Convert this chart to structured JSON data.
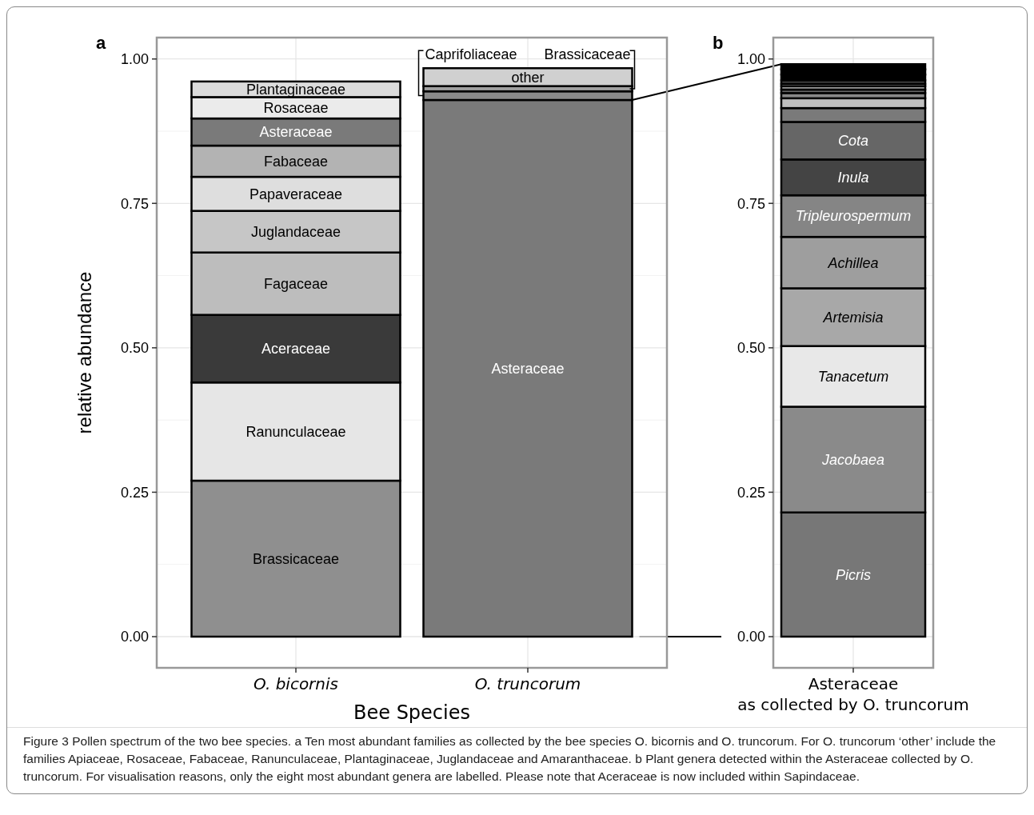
{
  "chart_data": [
    {
      "type": "bar",
      "title": "a",
      "stacked": true,
      "categories": [
        "O. bicornis",
        "O. truncorum"
      ],
      "xlabel": "Bee Species",
      "ylabel": "relative abundance",
      "ylim": [
        -0.054,
        1.037
      ],
      "yticks": [
        {
          "value": 0,
          "label": "0.00"
        },
        {
          "value": 0.25,
          "label": "0.25"
        },
        {
          "value": 0.5,
          "label": "0.50"
        },
        {
          "value": 0.75,
          "label": "0.75"
        },
        {
          "value": 1,
          "label": "1.00"
        }
      ],
      "grid": true,
      "annotations": [
        "Figure 3  Pollen spectrum of the two bee species. a Ten most abundant families as collected by the bee species O. bicornis and O. truncorum. For O. truncorum ‘other’ include the families Apiaceae, Rosaceae, Fabaceae, Ranunculaceae, Plantaginaceae, Juglandaceae and Amaranthaceae. b Plant genera detected within the Asteraceae collected by O. truncorum. For visualisation reasons, only the eight most abundant genera are labelled. Please note that Aceraceae is now included within Sapindaceae."
      ],
      "series": [
        {
          "name": "Brassicaceae",
          "color": "#8f8f8f",
          "values": [
            0.27,
            null
          ]
        },
        {
          "name": "Ranunculaceae",
          "color": "#e6e6e6",
          "values": [
            0.17,
            null
          ]
        },
        {
          "name": "Aceraceae",
          "color": "#3a3a3a",
          "values": [
            0.117,
            null
          ]
        },
        {
          "name": "Fagaceae",
          "color": "#bdbdbd",
          "values": [
            0.108,
            null
          ]
        },
        {
          "name": "Juglandaceae",
          "color": "#c6c6c6",
          "values": [
            0.072,
            null
          ]
        },
        {
          "name": "Papaveraceae",
          "color": "#dedede",
          "values": [
            0.059,
            null
          ]
        },
        {
          "name": "Fabaceae",
          "color": "#b3b3b3",
          "values": [
            0.054,
            null
          ]
        },
        {
          "name": "Asteraceae",
          "color": "#7a7a7a",
          "values": [
            0.047,
            null
          ]
        },
        {
          "name": "Rosaceae",
          "color": "#ebebeb",
          "values": [
            0.037,
            null
          ]
        },
        {
          "name": "Plantaginaceae",
          "color": "#dcdcdc",
          "values": [
            0.027,
            null
          ]
        },
        {
          "name": "Asteraceae",
          "color": "#7a7a7a",
          "values": [
            null,
            0.929
          ]
        },
        {
          "name": "Caprifoliaceae",
          "color": "#8a8a8a",
          "values": [
            null,
            0.015
          ]
        },
        {
          "name": "Brassicaceae",
          "color": "#a0a0a0",
          "values": [
            null,
            0.009
          ]
        },
        {
          "name": "other",
          "color": "#d0d0d0",
          "values": [
            null,
            0.031
          ]
        }
      ]
    },
    {
      "type": "bar",
      "title": "b",
      "stacked": true,
      "categories": [
        "Asteraceae\nas collected by O. truncorum"
      ],
      "ylim": [
        -0.054,
        1.037
      ],
      "yticks": [
        {
          "value": 0,
          "label": "0.00"
        },
        {
          "value": 0.25,
          "label": "0.25"
        },
        {
          "value": 0.5,
          "label": "0.50"
        },
        {
          "value": 0.75,
          "label": "0.75"
        },
        {
          "value": 1,
          "label": "1.00"
        }
      ],
      "grid": true,
      "series": [
        {
          "name": "Picris",
          "color": "#777777",
          "values": [
            0.215
          ]
        },
        {
          "name": "Jacobaea",
          "color": "#8a8a8a",
          "values": [
            0.183
          ]
        },
        {
          "name": "Tanacetum",
          "color": "#e8e8e8",
          "values": [
            0.105
          ]
        },
        {
          "name": "Artemisia",
          "color": "#a8a8a8",
          "values": [
            0.1
          ]
        },
        {
          "name": "Achillea",
          "color": "#9e9e9e",
          "values": [
            0.089
          ]
        },
        {
          "name": "Tripleurospermum",
          "color": "#858585",
          "values": [
            0.072
          ]
        },
        {
          "name": "Inula",
          "color": "#444444",
          "values": [
            0.062
          ]
        },
        {
          "name": "Cota",
          "color": "#666666",
          "values": [
            0.065
          ]
        },
        {
          "color": "#7a7a7a",
          "values": [
            0.024
          ]
        },
        {
          "color": "#c0c0c0",
          "values": [
            0.017
          ]
        },
        {
          "color": "#888888",
          "values": [
            0.009
          ]
        },
        {
          "color": "#666666",
          "values": [
            0.006
          ]
        },
        {
          "color": "#999999",
          "values": [
            0.006
          ]
        },
        {
          "color": "#bbbbbb",
          "values": [
            0.004
          ]
        },
        {
          "color": "#444444",
          "values": [
            0.006
          ]
        },
        {
          "color": "#000000",
          "values": [
            0.01
          ]
        },
        {
          "color": "#000000",
          "values": [
            0.009
          ]
        },
        {
          "color": "#000000",
          "values": [
            0.009
          ]
        }
      ]
    }
  ]
}
